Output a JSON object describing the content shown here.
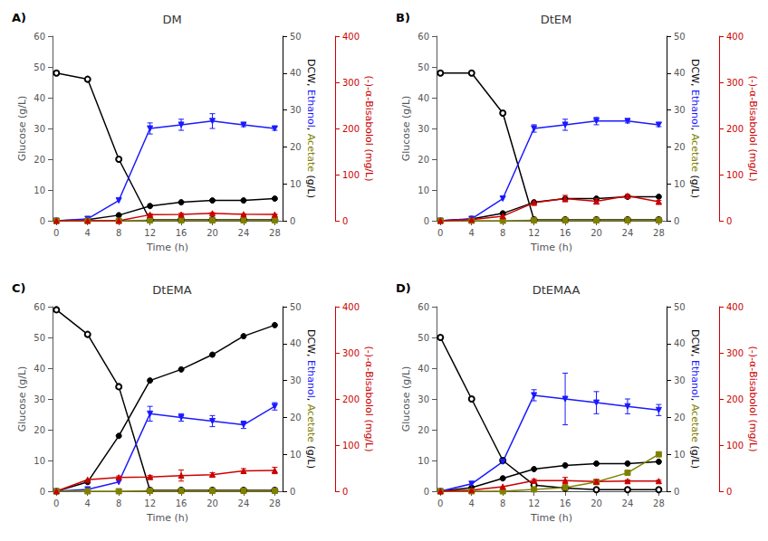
{
  "chart_data": [
    {
      "type": "line",
      "title": "DM",
      "annotations": [
        "A)"
      ],
      "xlabel": "Time (h)",
      "ylabel": "Glucose (g/L)",
      "y2label": "DCW, Ethanol, Acetate (g/L)",
      "y3label": "(-)-α-Bisabolol (mg/L)",
      "x": [
        0,
        4,
        8,
        12,
        16,
        20,
        24,
        28
      ],
      "xlim": [
        -0.5,
        29
      ],
      "xticks": [
        0,
        4,
        8,
        12,
        16,
        20,
        24,
        28
      ],
      "ylim": [
        0,
        60
      ],
      "yticks": [
        0,
        10,
        20,
        30,
        40,
        50,
        60
      ],
      "y2lim": [
        0,
        50
      ],
      "y2ticks": [
        0,
        10,
        20,
        30,
        40,
        50
      ],
      "y3lim": [
        0,
        400
      ],
      "y3ticks": [
        0,
        100,
        200,
        300,
        400
      ],
      "grid": false,
      "series": [
        {
          "name": "Glucose",
          "color": "#000000",
          "marker": "circle_open",
          "axis": "y",
          "values": [
            48,
            46,
            20,
            0.3,
            0.3,
            0.3,
            0.3,
            0.3
          ]
        },
        {
          "name": "DCW",
          "color": "#000000",
          "marker": "circle",
          "axis": "y2",
          "values": [
            0,
            0.3,
            1.5,
            4.0,
            5.0,
            5.5,
            5.5,
            6.0
          ]
        },
        {
          "name": "Ethanol",
          "color": "#1a1aff",
          "marker": "triangle_down",
          "axis": "y2",
          "values": [
            0,
            0.5,
            5.5,
            25,
            26,
            27,
            26,
            25
          ],
          "errors": [
            0,
            0,
            0,
            1.5,
            1.5,
            2.0,
            0.5,
            0.5
          ]
        },
        {
          "name": "Acetate",
          "color": "#808000",
          "marker": "square",
          "axis": "y2",
          "values": [
            0,
            0,
            0,
            0.1,
            0.1,
            0.1,
            0.1,
            0.1
          ]
        },
        {
          "name": "(-)-α-Bisabolol",
          "color": "#cc0000",
          "marker": "triangle",
          "axis": "y3",
          "values": [
            0,
            0,
            0,
            13,
            13.5,
            16,
            14,
            13.5
          ],
          "errors": [
            0,
            0,
            0,
            2.0,
            2.5,
            1.5,
            1.0,
            0.5
          ]
        }
      ]
    },
    {
      "type": "line",
      "title": "DtEM",
      "annotations": [
        "B)"
      ],
      "xlabel": "Time (h)",
      "ylabel": "Glucose (g/L)",
      "y2label": "DCW, Ethanol, Acetate (g/L)",
      "y3label": "(-)-α-Bisabolol (mg/L)",
      "x": [
        0,
        4,
        8,
        12,
        16,
        20,
        24,
        28
      ],
      "xlim": [
        -0.5,
        29
      ],
      "xticks": [
        0,
        4,
        8,
        12,
        16,
        20,
        24,
        28
      ],
      "ylim": [
        0,
        60
      ],
      "yticks": [
        0,
        10,
        20,
        30,
        40,
        50,
        60
      ],
      "y2lim": [
        0,
        50
      ],
      "y2ticks": [
        0,
        10,
        20,
        30,
        40,
        50
      ],
      "y3lim": [
        0,
        400
      ],
      "y3ticks": [
        0,
        100,
        200,
        300,
        400
      ],
      "grid": false,
      "series": [
        {
          "name": "Glucose",
          "color": "#000000",
          "marker": "circle_open",
          "axis": "y",
          "values": [
            48,
            48,
            35,
            0.3,
            0.3,
            0.3,
            0.3,
            0.3
          ]
        },
        {
          "name": "DCW",
          "color": "#000000",
          "marker": "circle",
          "axis": "y2",
          "values": [
            0,
            0.5,
            2.0,
            5.0,
            6.0,
            6.0,
            6.5,
            6.5
          ]
        },
        {
          "name": "Ethanol",
          "color": "#1a1aff",
          "marker": "triangle_down",
          "axis": "y2",
          "values": [
            0,
            0.5,
            6,
            25,
            26,
            27,
            27,
            26
          ],
          "errors": [
            0,
            0,
            0,
            1.0,
            1.5,
            1.0,
            0.5,
            0.5
          ]
        },
        {
          "name": "Acetate",
          "color": "#808000",
          "marker": "square",
          "axis": "y2",
          "values": [
            0,
            0,
            0,
            0.1,
            0.1,
            0.1,
            0.1,
            0.1
          ]
        },
        {
          "name": "(-)-α-Bisabolol",
          "color": "#cc0000",
          "marker": "triangle",
          "axis": "y3",
          "values": [
            0,
            2.5,
            10,
            39,
            48,
            42,
            54,
            41
          ],
          "errors": [
            0,
            0,
            0,
            2.0,
            7.0,
            6.0,
            3.0,
            3.0
          ]
        }
      ]
    },
    {
      "type": "line",
      "title": "DtEMA",
      "annotations": [
        "C)"
      ],
      "xlabel": "Time (h)",
      "ylabel": "Glucose (g/L)",
      "y2label": "DCW, Ethanol, Acetate (g/L)",
      "y3label": "(-)-α-Bisabolol (mg/L)",
      "x": [
        0,
        4,
        8,
        12,
        16,
        20,
        24,
        28
      ],
      "xlim": [
        -0.5,
        29
      ],
      "xticks": [
        0,
        4,
        8,
        12,
        16,
        20,
        24,
        28
      ],
      "ylim": [
        0,
        60
      ],
      "yticks": [
        0,
        10,
        20,
        30,
        40,
        50,
        60
      ],
      "y2lim": [
        0,
        50
      ],
      "y2ticks": [
        0,
        10,
        20,
        30,
        40,
        50
      ],
      "y3lim": [
        0,
        400
      ],
      "y3ticks": [
        0,
        100,
        200,
        300,
        400
      ],
      "grid": false,
      "series": [
        {
          "name": "Glucose",
          "color": "#000000",
          "marker": "circle_open",
          "axis": "y",
          "values": [
            59,
            51,
            34,
            0.3,
            0.3,
            0.3,
            0.3,
            0.3
          ]
        },
        {
          "name": "DCW",
          "color": "#000000",
          "marker": "circle",
          "axis": "y2",
          "values": [
            0,
            2.5,
            15,
            30,
            33,
            37,
            42,
            45
          ]
        },
        {
          "name": "Ethanol",
          "color": "#1a1aff",
          "marker": "triangle_down",
          "axis": "y2",
          "values": [
            0,
            0.5,
            2.5,
            21,
            20,
            19,
            18,
            23
          ],
          "errors": [
            0,
            0,
            0,
            2.0,
            1.0,
            1.5,
            1.0,
            1.0
          ]
        },
        {
          "name": "Acetate",
          "color": "#808000",
          "marker": "square",
          "axis": "y2",
          "values": [
            0,
            0,
            0,
            0.1,
            0.1,
            0.1,
            0.1,
            0.1
          ]
        },
        {
          "name": "(-)-α-Bisabolol",
          "color": "#cc0000",
          "marker": "triangle",
          "axis": "y3",
          "values": [
            0,
            25,
            30,
            31,
            34,
            36,
            44,
            45
          ],
          "errors": [
            0,
            0,
            3.0,
            3.0,
            12.0,
            4.0,
            5.0,
            7.0
          ]
        }
      ]
    },
    {
      "type": "line",
      "title": "DtEMAA",
      "annotations": [
        "D)"
      ],
      "xlabel": "Time (h)",
      "ylabel": "Glucose (g/L)",
      "y2label": "DCW, Ethanol, Acetate (g/L)",
      "y3label": "(-)-α-Bisabolol (mg/L)",
      "x": [
        0,
        4,
        8,
        12,
        16,
        20,
        24,
        28
      ],
      "xlim": [
        -0.5,
        29
      ],
      "xticks": [
        0,
        4,
        8,
        12,
        16,
        20,
        24,
        28
      ],
      "ylim": [
        0,
        60
      ],
      "yticks": [
        0,
        10,
        20,
        30,
        40,
        50,
        60
      ],
      "y2lim": [
        0,
        50
      ],
      "y2ticks": [
        0,
        10,
        20,
        30,
        40,
        50
      ],
      "y3lim": [
        0,
        400
      ],
      "y3ticks": [
        0,
        100,
        200,
        300,
        400
      ],
      "grid": false,
      "series": [
        {
          "name": "Glucose",
          "color": "#000000",
          "marker": "circle_open",
          "axis": "y",
          "values": [
            50,
            30,
            10,
            2.0,
            1.0,
            0.5,
            0.5,
            0.5
          ]
        },
        {
          "name": "DCW",
          "color": "#000000",
          "marker": "circle",
          "axis": "y2",
          "values": [
            0,
            1.0,
            3.5,
            6.0,
            7.0,
            7.5,
            7.5,
            8.0
          ]
        },
        {
          "name": "Ethanol",
          "color": "#1a1aff",
          "marker": "triangle_down",
          "axis": "y2",
          "values": [
            0,
            2.0,
            8,
            26,
            25,
            24,
            23,
            22
          ],
          "errors": [
            0,
            0,
            0,
            1.5,
            7.0,
            3.0,
            2.0,
            1.5
          ]
        },
        {
          "name": "Acetate",
          "color": "#808000",
          "marker": "square",
          "axis": "y2",
          "values": [
            0,
            0,
            0,
            0.5,
            1.0,
            2.5,
            5.0,
            10
          ]
        },
        {
          "name": "(-)-α-Bisabolol",
          "color": "#cc0000",
          "marker": "triangle",
          "axis": "y3",
          "values": [
            0,
            2.5,
            10,
            23,
            23,
            21,
            22,
            22
          ],
          "errors": [
            0,
            0,
            0,
            3.0,
            7.0,
            4.0,
            2.5,
            2.0
          ]
        }
      ]
    }
  ]
}
